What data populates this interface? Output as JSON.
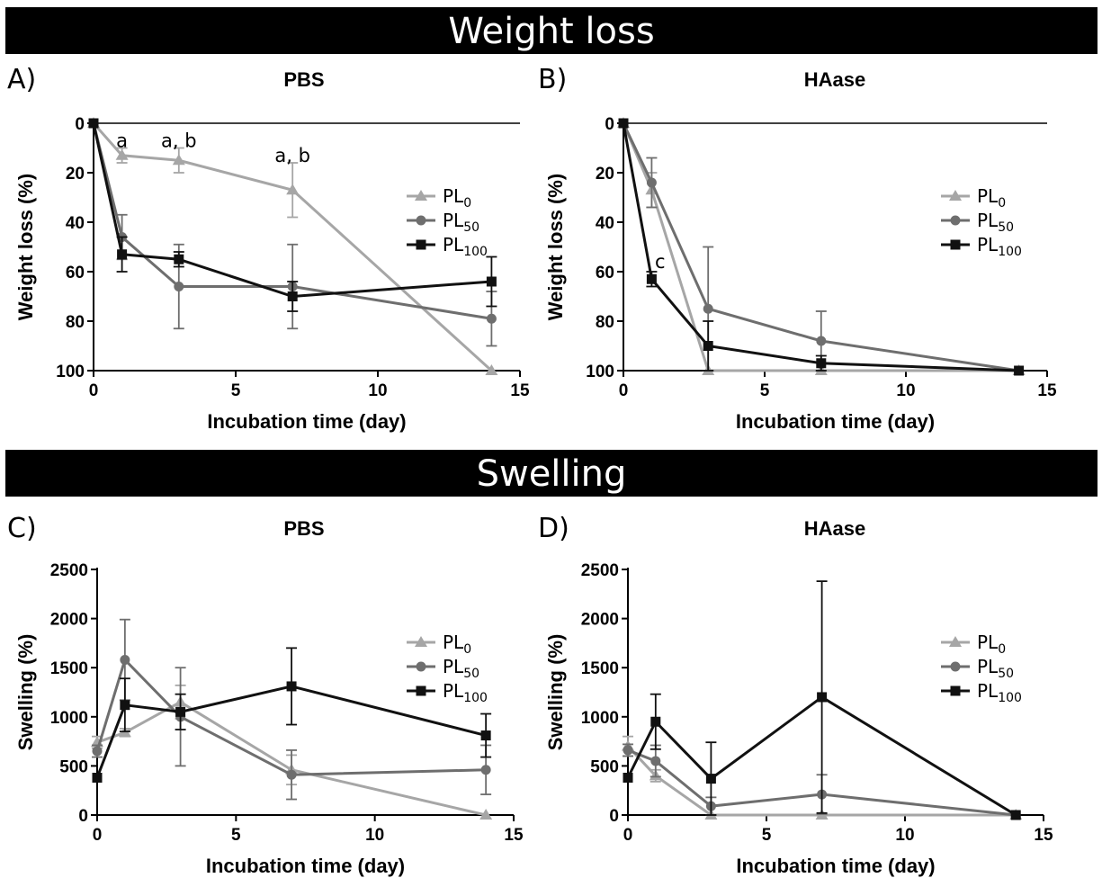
{
  "banners": {
    "top": "Weight loss",
    "bottom": "Swelling"
  },
  "legend_labels": [
    "PL",
    "PL",
    "PL"
  ],
  "series_styles": [
    {
      "color": "#a6a6a6",
      "marker": "triangle",
      "subscript": "0"
    },
    {
      "color": "#6e6e6e",
      "marker": "circle",
      "subscript": "50"
    },
    {
      "color": "#111111",
      "marker": "square",
      "subscript": "100"
    }
  ],
  "chart_data": [
    {
      "type": "line",
      "panel": "A)",
      "title": "PBS",
      "xlabel": "Incubation time (day)",
      "ylabel": "Weight loss (%)",
      "xlim": [
        0,
        15
      ],
      "ylim": [
        0,
        100
      ],
      "y_inverted": true,
      "xticks": [
        0,
        5,
        10,
        15
      ],
      "yticks": [
        0,
        20,
        40,
        60,
        80,
        100
      ],
      "zero_line": true,
      "x": [
        0,
        1,
        3,
        7,
        14
      ],
      "legend_position": "right",
      "series": [
        {
          "name": "PL0",
          "values": [
            0,
            13,
            15,
            27,
            100
          ],
          "errors": [
            0,
            3,
            5,
            11,
            0
          ]
        },
        {
          "name": "PL50",
          "values": [
            0,
            46,
            66,
            66,
            79
          ],
          "errors": [
            0,
            9,
            17,
            17,
            11
          ]
        },
        {
          "name": "PL100",
          "values": [
            0,
            53,
            55,
            70,
            64
          ],
          "errors": [
            0,
            7,
            3,
            6,
            10
          ]
        }
      ],
      "annotations": [
        {
          "text": "a",
          "x": 1,
          "y": 7
        },
        {
          "text": "a, b",
          "x": 3,
          "y": 7
        },
        {
          "text": "a, b",
          "x": 7,
          "y": 13
        }
      ]
    },
    {
      "type": "line",
      "panel": "B)",
      "title": "HAase",
      "xlabel": "Incubation time (day)",
      "ylabel": "Weight loss (%)",
      "xlim": [
        0,
        15
      ],
      "ylim": [
        0,
        100
      ],
      "y_inverted": true,
      "xticks": [
        0,
        5,
        10,
        15
      ],
      "yticks": [
        0,
        20,
        40,
        60,
        80,
        100
      ],
      "zero_line": true,
      "x": [
        0,
        1,
        3,
        7,
        14
      ],
      "legend_position": "right",
      "series": [
        {
          "name": "PL0",
          "values": [
            0,
            27,
            100,
            100,
            100
          ],
          "errors": [
            0,
            7,
            0,
            0,
            0
          ]
        },
        {
          "name": "PL50",
          "values": [
            0,
            24,
            75,
            88,
            100
          ],
          "errors": [
            0,
            10,
            25,
            12,
            0
          ]
        },
        {
          "name": "PL100",
          "values": [
            0,
            63,
            90,
            97,
            100
          ],
          "errors": [
            0,
            3,
            10,
            3,
            0
          ]
        }
      ],
      "annotations": [
        {
          "text": "c",
          "x": 1.3,
          "y": 56
        }
      ]
    },
    {
      "type": "line",
      "panel": "C)",
      "title": "PBS",
      "xlabel": "Incubation time (day)",
      "ylabel": "Swelling (%)",
      "xlim": [
        0,
        15
      ],
      "ylim": [
        0,
        2500
      ],
      "y_inverted": false,
      "xticks": [
        0,
        5,
        10,
        15
      ],
      "yticks": [
        0,
        500,
        1000,
        1500,
        2000,
        2500
      ],
      "zero_line": false,
      "x": [
        0,
        1,
        3,
        7,
        14
      ],
      "legend_position": "right",
      "series": [
        {
          "name": "PL0",
          "values": [
            740,
            840,
            1150,
            460,
            0
          ],
          "errors": [
            60,
            40,
            170,
            150,
            0
          ]
        },
        {
          "name": "PL50",
          "values": [
            650,
            1580,
            1000,
            410,
            460
          ],
          "errors": [
            60,
            410,
            500,
            250,
            250
          ]
        },
        {
          "name": "PL100",
          "values": [
            380,
            1120,
            1050,
            1310,
            810
          ],
          "errors": [
            0,
            270,
            180,
            390,
            220
          ]
        }
      ],
      "annotations": []
    },
    {
      "type": "line",
      "panel": "D)",
      "title": "HAase",
      "xlabel": "Incubation time (day)",
      "ylabel": "Swelling (%)",
      "xlim": [
        0,
        15
      ],
      "ylim": [
        0,
        2500
      ],
      "y_inverted": false,
      "xticks": [
        0,
        5,
        10,
        15
      ],
      "yticks": [
        0,
        500,
        1000,
        1500,
        2000,
        2500
      ],
      "zero_line": false,
      "x": [
        0,
        1,
        3,
        7,
        14
      ],
      "legend_position": "right",
      "series": [
        {
          "name": "PL0",
          "values": [
            700,
            400,
            0,
            0,
            0
          ],
          "errors": [
            100,
            60,
            0,
            0,
            0
          ]
        },
        {
          "name": "PL50",
          "values": [
            660,
            550,
            90,
            210,
            0
          ],
          "errors": [
            60,
            160,
            90,
            200,
            0
          ]
        },
        {
          "name": "PL100",
          "values": [
            380,
            950,
            370,
            1200,
            0
          ],
          "errors": [
            0,
            280,
            370,
            1180,
            0
          ]
        }
      ],
      "annotations": []
    }
  ]
}
